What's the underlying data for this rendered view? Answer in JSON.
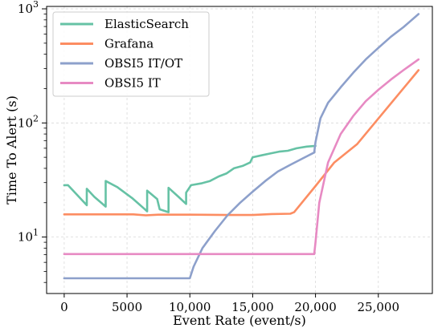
{
  "chart_data": {
    "type": "line",
    "xlabel": "Event Rate (event/s)",
    "ylabel": "Time To Alert (s)",
    "yscale": "log",
    "xlim": [
      -1400,
      29300
    ],
    "ylim": [
      3.2,
      1050
    ],
    "x_ticks": [
      0,
      5000,
      10000,
      15000,
      20000,
      25000
    ],
    "x_tick_labels": [
      "0",
      "5000",
      "10,000",
      "15,000",
      "20,000",
      "25,000"
    ],
    "y_ticks": [
      10,
      100,
      1000
    ],
    "y_tick_labels": [
      "10",
      "10",
      "10"
    ],
    "y_tick_exponents": [
      "1",
      "2",
      "3"
    ],
    "grid": true,
    "legend_position": "top-left",
    "series": [
      {
        "name": "ElasticSearch",
        "color": "#66c2a5",
        "x": [
          0,
          300,
          1800,
          1800,
          2400,
          3300,
          3300,
          4200,
          5400,
          6300,
          6600,
          6600,
          7400,
          7600,
          8300,
          8300,
          9100,
          9700,
          9700,
          10100,
          10900,
          11600,
          12300,
          12900,
          13500,
          14200,
          14800,
          15000,
          15700,
          16400,
          17100,
          17800,
          18500,
          19300,
          20000
        ],
        "y": [
          28.5,
          28.5,
          19,
          26.5,
          22.5,
          18.5,
          31,
          27.5,
          22,
          18,
          16.8,
          25.5,
          21.5,
          17.5,
          16.5,
          27,
          22.5,
          19.5,
          24.5,
          28.5,
          29.5,
          31,
          34,
          36,
          40,
          42,
          45,
          50,
          52,
          54,
          56,
          57,
          60,
          62,
          63
        ]
      },
      {
        "name": "Grafana",
        "color": "#fc8d62",
        "x": [
          0,
          3000,
          5500,
          6500,
          7500,
          10000,
          13000,
          15000,
          16500,
          18000,
          18300,
          20000,
          21500,
          23300,
          28200
        ],
        "y": [
          15.8,
          15.8,
          15.8,
          15.5,
          15.7,
          15.7,
          15.6,
          15.6,
          15.9,
          16,
          16.5,
          28,
          45,
          65,
          290
        ]
      },
      {
        "name": "OBSI5 IT/OT",
        "color": "#8da0cb",
        "x": [
          0,
          5000,
          9000,
          10000,
          10300,
          11000,
          12000,
          13000,
          14000,
          15000,
          16000,
          17000,
          18000,
          19000,
          19900,
          20000,
          20400,
          21000,
          22000,
          23000,
          24000,
          25000,
          26000,
          27000,
          28200
        ],
        "y": [
          4.35,
          4.35,
          4.35,
          4.35,
          5.5,
          8,
          11.3,
          15.5,
          20,
          25,
          31,
          37.5,
          43,
          49,
          55,
          68,
          110,
          150,
          205,
          275,
          360,
          455,
          570,
          690,
          900
        ]
      },
      {
        "name": "OBSI5 IT",
        "color": "#e78ac3",
        "x": [
          0,
          5000,
          10000,
          15000,
          19900,
          20000,
          20300,
          21000,
          22000,
          23000,
          24000,
          25000,
          26000,
          27000,
          28200
        ],
        "y": [
          7.1,
          7.1,
          7.1,
          7.1,
          7.1,
          9,
          20,
          45,
          80,
          115,
          155,
          195,
          240,
          290,
          360
        ]
      }
    ]
  }
}
